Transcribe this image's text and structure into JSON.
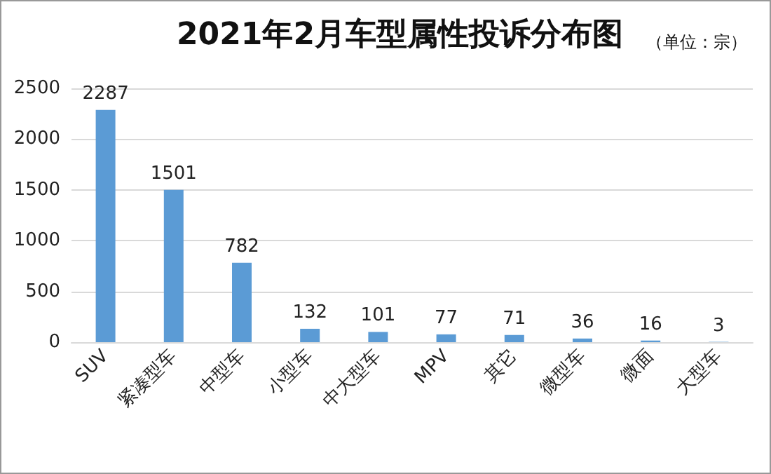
{
  "chart_data": {
    "type": "bar",
    "title": "2021年2月车型属性投诉分布图",
    "subtitle": "（单位：宗）",
    "categories": [
      "SUV",
      "紧凑型车",
      "中型车",
      "小型车",
      "中大型车",
      "MPV",
      "其它",
      "微型车",
      "微面",
      "大型车"
    ],
    "values": [
      2287,
      1501,
      782,
      132,
      101,
      77,
      71,
      36,
      16,
      3
    ],
    "color": "#5b9bd5",
    "ylim": [
      0,
      2500
    ],
    "yticks": [
      0,
      500,
      1000,
      1500,
      2000,
      2500
    ],
    "grid": "y",
    "data_labels": true
  }
}
